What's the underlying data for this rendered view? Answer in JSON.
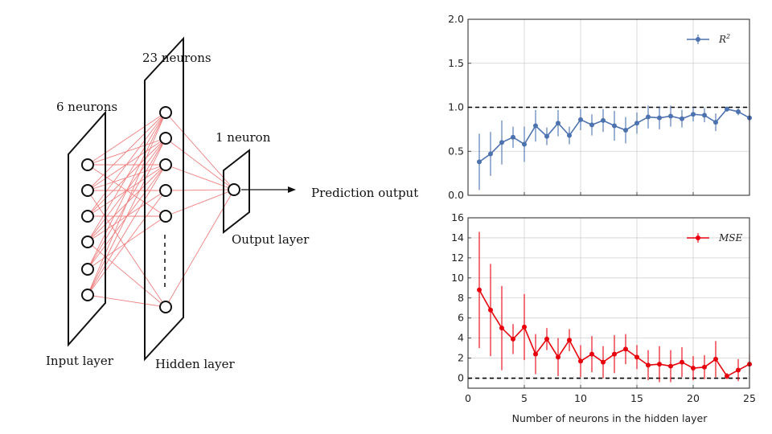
{
  "diagram": {
    "input_layer": {
      "count_label": "6 neurons",
      "layer_label": "Input layer",
      "neuron_count": 6
    },
    "hidden_layer": {
      "count_label": "23 neurons",
      "layer_label": "Hidden layer",
      "visible_neurons": 6
    },
    "output_layer": {
      "count_label": "1 neuron",
      "layer_label": "Output layer",
      "neuron_count": 1
    },
    "output_label": "Prediction output",
    "colors": {
      "connection": "#f08080",
      "layer_edge": "#111111",
      "neuron_edge": "#111111"
    }
  },
  "chart_data": [
    {
      "type": "line",
      "legend": "R^2",
      "legend_position": "top-right",
      "ylim": [
        0,
        2.0
      ],
      "xlim": [
        0,
        25
      ],
      "yticks": [
        "0.0",
        "0.5",
        "1.0",
        "1.5",
        "2.0"
      ],
      "grid": true,
      "reference_line": 1.0,
      "color": "#4c72b0",
      "x": [
        1,
        2,
        3,
        4,
        5,
        6,
        7,
        8,
        9,
        10,
        11,
        12,
        13,
        14,
        15,
        16,
        17,
        18,
        19,
        20,
        21,
        22,
        23,
        24,
        25
      ],
      "y": [
        0.38,
        0.47,
        0.6,
        0.66,
        0.58,
        0.79,
        0.67,
        0.82,
        0.68,
        0.86,
        0.8,
        0.85,
        0.79,
        0.74,
        0.82,
        0.89,
        0.88,
        0.9,
        0.87,
        0.92,
        0.91,
        0.83,
        0.98,
        0.95,
        0.88
      ],
      "err": [
        0.32,
        0.25,
        0.25,
        0.12,
        0.2,
        0.18,
        0.1,
        0.15,
        0.1,
        0.12,
        0.12,
        0.13,
        0.17,
        0.15,
        0.12,
        0.13,
        0.13,
        0.12,
        0.1,
        0.08,
        0.08,
        0.1,
        0.03,
        0.04,
        0.05
      ]
    },
    {
      "type": "line",
      "legend": "MSE",
      "legend_position": "top-right",
      "ylim": [
        -1,
        16
      ],
      "xlim": [
        0,
        25
      ],
      "yticks": [
        "0",
        "2",
        "4",
        "6",
        "8",
        "10",
        "12",
        "14",
        "16"
      ],
      "xticks": [
        "0",
        "5",
        "10",
        "15",
        "20",
        "25"
      ],
      "xlabel": "Number of neurons in the hidden layer",
      "grid": true,
      "reference_line": 0,
      "color": "#e8000b",
      "x": [
        1,
        2,
        3,
        4,
        5,
        6,
        7,
        8,
        9,
        10,
        11,
        12,
        13,
        14,
        15,
        16,
        17,
        18,
        19,
        20,
        21,
        22,
        23,
        24,
        25
      ],
      "y": [
        8.8,
        6.8,
        5.0,
        3.9,
        5.1,
        2.4,
        3.9,
        2.1,
        3.8,
        1.7,
        2.4,
        1.6,
        2.4,
        2.9,
        2.1,
        1.3,
        1.4,
        1.2,
        1.6,
        1.0,
        1.1,
        1.9,
        0.2,
        0.8,
        1.4
      ],
      "err": [
        5.8,
        4.6,
        4.2,
        1.5,
        3.3,
        2.0,
        1.1,
        1.9,
        1.1,
        1.6,
        1.8,
        1.6,
        1.9,
        1.5,
        1.2,
        1.5,
        1.8,
        1.6,
        1.5,
        1.2,
        1.2,
        1.8,
        0.3,
        1.1,
        1.0
      ]
    }
  ]
}
